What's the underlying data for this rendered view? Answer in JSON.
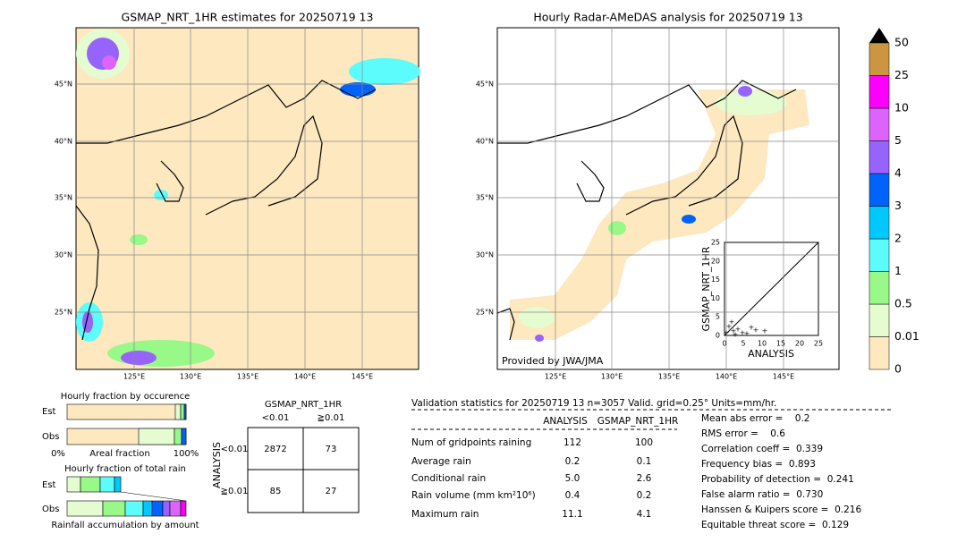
{
  "left_map": {
    "title": "GSMAP_NRT_1HR estimates for 20250719 13",
    "lat_labels": [
      "45°N",
      "40°N",
      "35°N",
      "30°N",
      "25°N"
    ],
    "lon_labels": [
      "125°E",
      "130°E",
      "135°E",
      "140°E",
      "145°E"
    ]
  },
  "right_map": {
    "title": "Hourly Radar-AMeDAS analysis for 20250719 13",
    "lat_labels": [
      "45°N",
      "40°N",
      "35°N",
      "30°N",
      "25°N"
    ],
    "lon_labels": [
      "125°E",
      "130°E",
      "135°E",
      "140°E",
      "145°E"
    ],
    "credit": "Provided by JWA/JMA"
  },
  "inset_scatter": {
    "x_label": "ANALYSIS",
    "y_label": "GSMAP_NRT_1HR",
    "ticks": [
      0,
      5,
      10,
      15,
      20,
      25
    ]
  },
  "colorbar": {
    "labels": [
      "0",
      "0.01",
      "0.5",
      "1",
      "2",
      "3",
      "4",
      "5",
      "10",
      "25",
      "50"
    ],
    "colors": [
      "#fde8c0",
      "#e4fcd0",
      "#98f888",
      "#5cfcfc",
      "#00c8fc",
      "#0064fc",
      "#9664fc",
      "#dc64fc",
      "#fc00fc",
      "#cc9640"
    ]
  },
  "occurrence": {
    "title": "Hourly fraction by occurence",
    "rows": [
      "Est",
      "Obs"
    ],
    "axis_labels": [
      "0%",
      "Areal fraction",
      "100%"
    ]
  },
  "total_rain": {
    "title": "Hourly fraction of total rain",
    "rows": [
      "Est",
      "Obs"
    ],
    "x_label": "Rainfall accumulation by amount"
  },
  "contingency": {
    "title": "GSMAP_NRT_1HR",
    "col_headers": [
      "<0.01",
      "≧0.01"
    ],
    "row_axis": "ANALYSIS",
    "row_headers": [
      "<0.01",
      "≧0.01"
    ],
    "cells": [
      [
        "2872",
        "73"
      ],
      [
        "85",
        "27"
      ]
    ]
  },
  "validation": {
    "header": "Validation statistics for 20250719 13  n=3057 Valid. grid=0.25° Units=mm/hr.",
    "columns": [
      "ANALYSIS",
      "GSMAP_NRT_1HR"
    ],
    "rows": [
      [
        "Num of gridpoints raining",
        "112",
        "100"
      ],
      [
        "Average rain",
        "0.2",
        "0.1"
      ],
      [
        "Conditional rain",
        "5.0",
        "2.6"
      ],
      [
        "Rain volume (mm km²10⁶)",
        "0.4",
        "0.2"
      ],
      [
        "Maximum rain",
        "11.1",
        "4.1"
      ]
    ],
    "scores": [
      "Mean abs error =    0.2",
      "RMS error =    0.6",
      "Correlation coeff =  0.339",
      "Frequency bias =  0.893",
      "Probability of detection =  0.241",
      "False alarm ratio =  0.730",
      "Hanssen & Kuipers score =  0.216",
      "Equitable threat score =  0.129"
    ]
  }
}
